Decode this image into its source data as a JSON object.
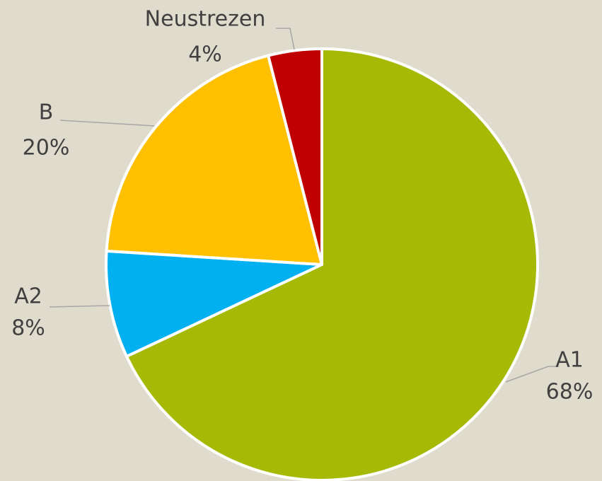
{
  "chart_data": {
    "type": "pie",
    "categories": [
      "A1",
      "A2",
      "B",
      "Neustrezen"
    ],
    "values": [
      68,
      8,
      20,
      4
    ],
    "value_labels": [
      "68%",
      "8%",
      "20%",
      "4%"
    ],
    "colors": [
      "#a6b904",
      "#00b0f0",
      "#ffc000",
      "#c00000"
    ]
  }
}
